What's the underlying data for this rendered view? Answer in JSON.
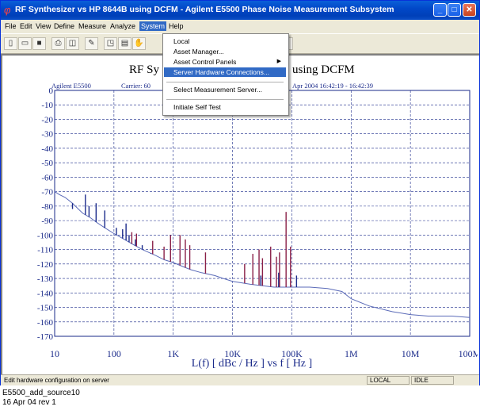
{
  "window": {
    "title": "RF Synthesizer vs HP 8644B using DCFM - Agilent E5500 Phase Noise Measurement Subsystem",
    "app_icon": "phi-icon",
    "controls": [
      "minimize-icon",
      "maximize-icon",
      "close-icon"
    ]
  },
  "menubar": [
    "File",
    "Edit",
    "View",
    "Define",
    "Measure",
    "Analyze",
    "System",
    "Help"
  ],
  "active_menu": "System",
  "toolbar": [
    "new-icon",
    "open-icon",
    "save-icon",
    "print-icon",
    "print-preview-icon",
    "edit-icon",
    "copy-icon",
    "paste-icon",
    "pan-icon"
  ],
  "system_menu": {
    "local": "Local",
    "asset_manager": "Asset Manager...",
    "asset_control_panels": "Asset Control Panels",
    "server_hardware": "Server Hardware Connections...",
    "select_server": "Select Measurement Server...",
    "self_test": "Initiate Self Test"
  },
  "plot": {
    "title_left": "RF Sy",
    "title_right": "using DCFM",
    "info_left": "Agilent E5500",
    "info_carrier": "Carrier: 60",
    "info_right": "Apr 2004   16:42:19 - 16:42:39"
  },
  "chart_data": {
    "type": "line",
    "xlabel": "L(f)  [ dBc / Hz ]  vs  f  [ Hz ]",
    "x_scale": "log",
    "xlim": [
      10,
      100000000
    ],
    "ylim": [
      -170,
      0
    ],
    "grid": true,
    "x_ticks": [
      {
        "value": 10,
        "label": "10"
      },
      {
        "value": 100,
        "label": "100"
      },
      {
        "value": 1000,
        "label": "1K"
      },
      {
        "value": 10000,
        "label": "10K"
      },
      {
        "value": 100000,
        "label": "100K"
      },
      {
        "value": 1000000,
        "label": "1M"
      },
      {
        "value": 10000000,
        "label": "10M"
      },
      {
        "value": 100000000,
        "label": "100M"
      }
    ],
    "y_ticks": [
      0,
      -10,
      -20,
      -30,
      -40,
      -50,
      -60,
      -70,
      -80,
      -90,
      -100,
      -110,
      -120,
      -130,
      -140,
      -150,
      -160,
      -170
    ],
    "colors": {
      "trace": "#5a6ab8",
      "spur_blue": "#1a2a8a",
      "spur_red": "#8a2048"
    },
    "trace": [
      [
        10,
        -70
      ],
      [
        12,
        -72
      ],
      [
        15,
        -74
      ],
      [
        20,
        -78
      ],
      [
        25,
        -82
      ],
      [
        30,
        -85
      ],
      [
        40,
        -88
      ],
      [
        50,
        -91
      ],
      [
        70,
        -95
      ],
      [
        100,
        -99
      ],
      [
        150,
        -103
      ],
      [
        200,
        -106
      ],
      [
        300,
        -110
      ],
      [
        500,
        -114
      ],
      [
        700,
        -117
      ],
      [
        1000,
        -119
      ],
      [
        1500,
        -122
      ],
      [
        2000,
        -124
      ],
      [
        3000,
        -126
      ],
      [
        5000,
        -128
      ],
      [
        7000,
        -130
      ],
      [
        10000,
        -132
      ],
      [
        20000,
        -134
      ],
      [
        50000,
        -136
      ],
      [
        100000,
        -136
      ],
      [
        200000,
        -136
      ],
      [
        400000,
        -137
      ],
      [
        700000,
        -139
      ],
      [
        1000000,
        -144
      ],
      [
        2000000,
        -149
      ],
      [
        5000000,
        -153
      ],
      [
        10000000,
        -155
      ],
      [
        20000000,
        -156
      ],
      [
        50000000,
        -156
      ],
      [
        100000000,
        -157
      ]
    ],
    "spurs_blue": [
      [
        20,
        -82
      ],
      [
        33,
        -72
      ],
      [
        38,
        -80
      ],
      [
        50,
        -78
      ],
      [
        70,
        -83
      ],
      [
        110,
        -95
      ],
      [
        140,
        -96
      ],
      [
        160,
        -92
      ],
      [
        180,
        -100
      ],
      [
        230,
        -103
      ],
      [
        300,
        -107
      ],
      [
        420,
        -113
      ],
      [
        30000,
        -128
      ],
      [
        60000,
        -126
      ],
      [
        120000,
        -128
      ]
    ],
    "spurs_red": [
      [
        200,
        -98
      ],
      [
        240,
        -99
      ],
      [
        450,
        -104
      ],
      [
        700,
        -108
      ],
      [
        900,
        -100
      ],
      [
        1300,
        -100
      ],
      [
        1600,
        -103
      ],
      [
        1900,
        -107
      ],
      [
        3500,
        -112
      ],
      [
        16000,
        -120
      ],
      [
        22000,
        -113
      ],
      [
        28000,
        -110
      ],
      [
        32000,
        -116
      ],
      [
        44000,
        -108
      ],
      [
        55000,
        -115
      ],
      [
        62000,
        -112
      ],
      [
        80000,
        -84
      ],
      [
        95000,
        -108
      ]
    ]
  },
  "statusbar": {
    "message": "Edit hardware configuration on server",
    "mode": "LOCAL",
    "state": "IDLE"
  },
  "caption": {
    "line1": "E5500_add_source10",
    "line2": "16 Apr 04  rev 1"
  }
}
